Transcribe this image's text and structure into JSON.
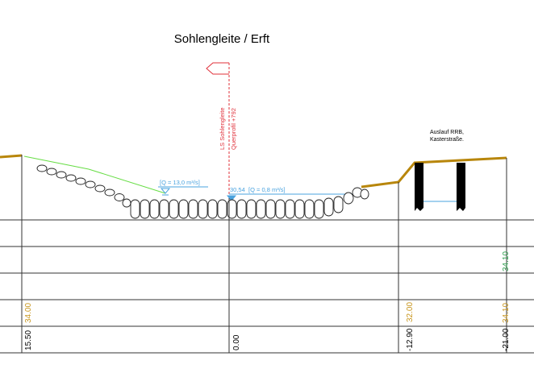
{
  "title": "Sohlengleite / Erft",
  "colors": {
    "ground": "#b8860b",
    "water": "#4aa3df",
    "red": "#e0303a",
    "green_line": "#66dd44",
    "value_gold": "#c8961e",
    "value_green": "#2e9e4e",
    "grid": "#333333"
  },
  "labels": {
    "section_line_1": "LS Sohlengleite",
    "section_line_2": "Querprofil +792",
    "discharge_high": "[Q = 13,0 m³/s]",
    "water_level": "30,54",
    "discharge_low": "[Q = 0,8 m³/s]",
    "outlet_line_1": "Auslauf RRB,",
    "outlet_line_2": "Kasterstraße."
  },
  "table_values": {
    "green_right": "34.10",
    "gold_left": "34.00",
    "gold_mid_right": "32.00",
    "gold_right": "34.10",
    "dist_left": "15.50",
    "dist_center": "0.00",
    "dist_mid_right": "-12.90",
    "dist_right": "-21.00"
  }
}
